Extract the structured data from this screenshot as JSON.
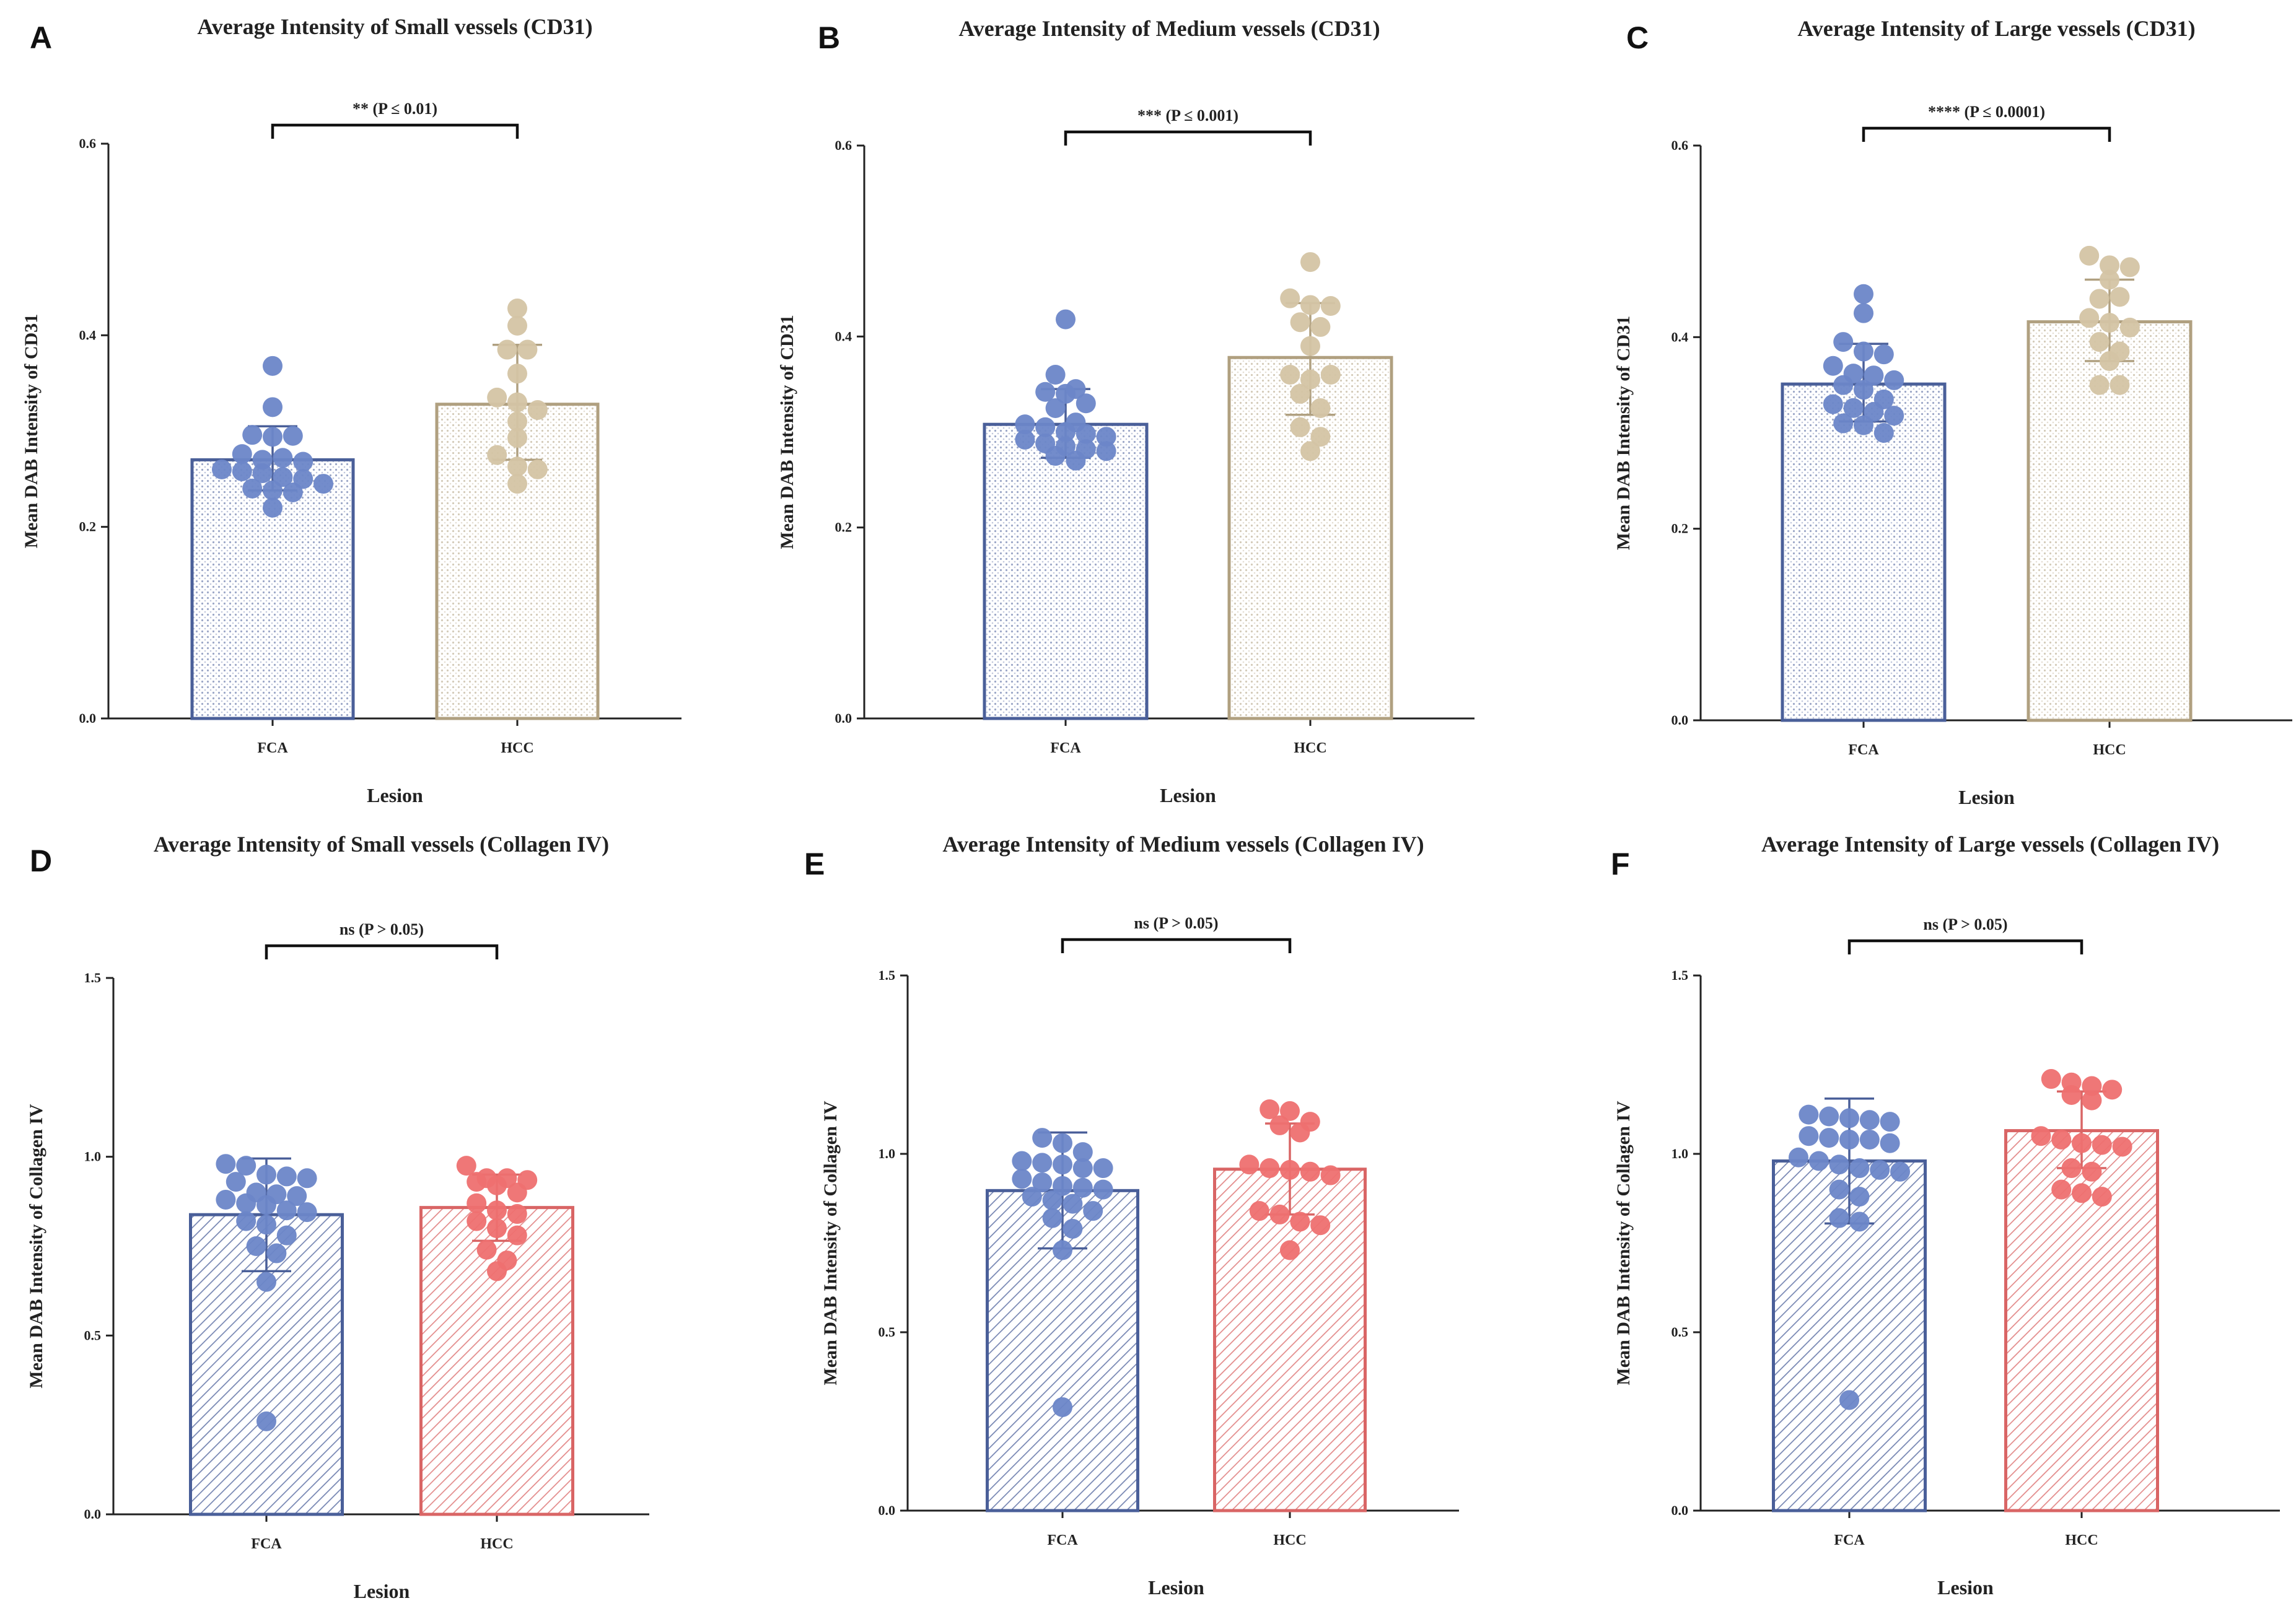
{
  "colors": {
    "fca_dot": "#6c86c8",
    "fca_edge": "#4a5f99",
    "hcc_cd31_dot": "#d4c4a4",
    "hcc_cd31_edge": "#b0a080",
    "hcc_col_dot": "#ee7070",
    "hcc_col_edge": "#d96565",
    "axis": "#222222"
  },
  "chart_data": [
    {
      "panel": "A",
      "type": "bar",
      "pattern": "dots",
      "title": "Average Intensity of Small vessels (CD31)",
      "xlabel": "Lesion",
      "ylabel": "Mean DAB Intensity of CD31",
      "ylim": [
        0,
        0.6
      ],
      "yticks": [
        "0.0",
        "0.2",
        "0.4",
        "0.6"
      ],
      "significance": "** (P ≤ 0.01)",
      "categories": [
        "FCA",
        "HCC"
      ],
      "series": [
        {
          "name": "FCA",
          "mean": 0.27,
          "sd_low": 0.238,
          "sd_high": 0.305,
          "points": [
            0.368,
            0.325,
            0.296,
            0.294,
            0.295,
            0.276,
            0.27,
            0.272,
            0.268,
            0.26,
            0.258,
            0.256,
            0.252,
            0.25,
            0.245,
            0.24,
            0.238,
            0.236,
            0.22
          ]
        },
        {
          "name": "HCC",
          "mean": 0.328,
          "sd_low": 0.27,
          "sd_high": 0.39,
          "points": [
            0.428,
            0.41,
            0.385,
            0.385,
            0.36,
            0.335,
            0.33,
            0.322,
            0.31,
            0.293,
            0.275,
            0.263,
            0.26,
            0.245
          ]
        }
      ]
    },
    {
      "panel": "B",
      "type": "bar",
      "pattern": "dots",
      "title": "Average Intensity of Medium vessels (CD31)",
      "xlabel": "Lesion",
      "ylabel": "Mean DAB Intensity of CD31",
      "ylim": [
        0,
        0.6
      ],
      "yticks": [
        "0.0",
        "0.2",
        "0.4",
        "0.6"
      ],
      "significance": "*** (P ≤ 0.001)",
      "categories": [
        "FCA",
        "HCC"
      ],
      "series": [
        {
          "name": "FCA",
          "mean": 0.308,
          "sd_low": 0.273,
          "sd_high": 0.345,
          "points": [
            0.418,
            0.36,
            0.345,
            0.342,
            0.34,
            0.33,
            0.325,
            0.31,
            0.308,
            0.305,
            0.3,
            0.298,
            0.295,
            0.292,
            0.288,
            0.285,
            0.282,
            0.28,
            0.275,
            0.27
          ]
        },
        {
          "name": "HCC",
          "mean": 0.378,
          "sd_low": 0.318,
          "sd_high": 0.435,
          "points": [
            0.478,
            0.44,
            0.433,
            0.432,
            0.415,
            0.41,
            0.39,
            0.36,
            0.355,
            0.36,
            0.34,
            0.325,
            0.305,
            0.295,
            0.28
          ]
        }
      ]
    },
    {
      "panel": "C",
      "type": "bar",
      "pattern": "dots",
      "title": "Average Intensity of Large vessels (CD31)",
      "xlabel": "Lesion",
      "ylabel": "Mean DAB Intensity of CD31",
      "ylim": [
        0,
        0.6
      ],
      "yticks": [
        "0.0",
        "0.2",
        "0.4",
        "0.6"
      ],
      "significance": "**** (P ≤ 0.0001)",
      "categories": [
        "FCA",
        "HCC"
      ],
      "series": [
        {
          "name": "FCA",
          "mean": 0.351,
          "sd_low": 0.312,
          "sd_high": 0.393,
          "points": [
            0.445,
            0.425,
            0.395,
            0.385,
            0.382,
            0.37,
            0.362,
            0.36,
            0.355,
            0.35,
            0.345,
            0.335,
            0.33,
            0.326,
            0.322,
            0.318,
            0.31,
            0.308,
            0.3
          ]
        },
        {
          "name": "HCC",
          "mean": 0.416,
          "sd_low": 0.375,
          "sd_high": 0.46,
          "points": [
            0.485,
            0.475,
            0.473,
            0.46,
            0.44,
            0.442,
            0.42,
            0.415,
            0.41,
            0.395,
            0.385,
            0.375,
            0.35,
            0.35
          ]
        }
      ]
    },
    {
      "panel": "D",
      "type": "bar",
      "pattern": "hatch",
      "title": "Average Intensity of Small vessels (Collagen IV)",
      "xlabel": "Lesion",
      "ylabel": "Mean DAB Intensity of Collagen IV",
      "ylim": [
        0,
        1.5
      ],
      "yticks": [
        "0.0",
        "0.5",
        "1.0",
        "1.5"
      ],
      "significance": "ns (P > 0.05)",
      "categories": [
        "FCA",
        "HCC"
      ],
      "series": [
        {
          "name": "FCA",
          "mean": 0.838,
          "sd_low": 0.68,
          "sd_high": 0.995,
          "points": [
            0.98,
            0.975,
            0.95,
            0.945,
            0.94,
            0.93,
            0.9,
            0.895,
            0.89,
            0.88,
            0.87,
            0.865,
            0.85,
            0.845,
            0.82,
            0.81,
            0.78,
            0.75,
            0.73,
            0.65,
            0.26
          ]
        },
        {
          "name": "HCC",
          "mean": 0.858,
          "sd_low": 0.765,
          "sd_high": 0.95,
          "points": [
            0.975,
            0.94,
            0.94,
            0.935,
            0.93,
            0.92,
            0.9,
            0.87,
            0.85,
            0.84,
            0.82,
            0.8,
            0.78,
            0.74,
            0.71,
            0.68
          ]
        }
      ]
    },
    {
      "panel": "E",
      "type": "bar",
      "pattern": "hatch",
      "title": "Average Intensity of Medium vessels (Collagen IV)",
      "xlabel": "Lesion",
      "ylabel": "Mean DAB Intensity of Collagen IV",
      "ylim": [
        0,
        1.5
      ],
      "yticks": [
        "0.0",
        "0.5",
        "1.0",
        "1.5"
      ],
      "significance": "ns (P > 0.05)",
      "categories": [
        "FCA",
        "HCC"
      ],
      "series": [
        {
          "name": "FCA",
          "mean": 0.897,
          "sd_low": 0.735,
          "sd_high": 1.06,
          "points": [
            1.045,
            1.03,
            1.005,
            0.98,
            0.975,
            0.97,
            0.96,
            0.96,
            0.93,
            0.92,
            0.91,
            0.905,
            0.9,
            0.88,
            0.87,
            0.86,
            0.84,
            0.82,
            0.79,
            0.73,
            0.29
          ]
        },
        {
          "name": "HCC",
          "mean": 0.957,
          "sd_low": 0.83,
          "sd_high": 1.085,
          "points": [
            1.125,
            1.12,
            1.09,
            1.08,
            1.06,
            0.97,
            0.96,
            0.955,
            0.95,
            0.94,
            0.84,
            0.83,
            0.81,
            0.8,
            0.73
          ]
        }
      ]
    },
    {
      "panel": "F",
      "type": "bar",
      "pattern": "hatch",
      "title": "Average Intensity of Large vessels (Collagen IV)",
      "xlabel": "Lesion",
      "ylabel": "Mean DAB Intensity of Collagen IV",
      "ylim": [
        0,
        1.5
      ],
      "yticks": [
        "0.0",
        "0.5",
        "1.0",
        "1.5"
      ],
      "significance": "ns (P > 0.05)",
      "categories": [
        "FCA",
        "HCC"
      ],
      "series": [
        {
          "name": "FCA",
          "mean": 0.98,
          "sd_low": 0.805,
          "sd_high": 1.155,
          "points": [
            1.11,
            1.105,
            1.1,
            1.095,
            1.09,
            1.05,
            1.045,
            1.04,
            1.04,
            1.03,
            0.99,
            0.98,
            0.97,
            0.96,
            0.955,
            0.95,
            0.9,
            0.88,
            0.82,
            0.81,
            0.31
          ]
        },
        {
          "name": "HCC",
          "mean": 1.065,
          "sd_low": 0.96,
          "sd_high": 1.175,
          "points": [
            1.21,
            1.2,
            1.19,
            1.18,
            1.165,
            1.15,
            1.05,
            1.04,
            1.03,
            1.025,
            1.02,
            0.96,
            0.95,
            0.9,
            0.89,
            0.88
          ]
        }
      ]
    }
  ]
}
